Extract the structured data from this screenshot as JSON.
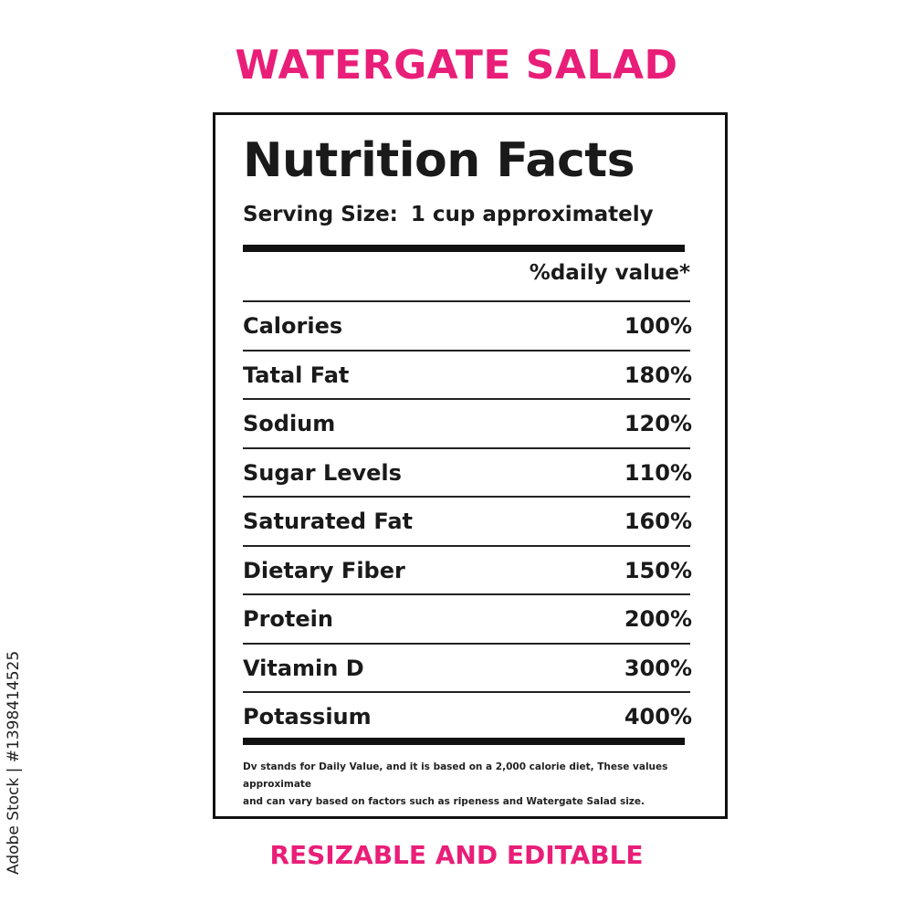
{
  "header": {
    "title": "WATERGATE SALAD",
    "accent_color": "#e91e78"
  },
  "label": {
    "title": "Nutrition Facts",
    "serving_label": "Serving Size:",
    "serving_value": "1 cup approximately",
    "dv_header": "%daily value*",
    "rows": [
      {
        "name": "Calories",
        "percent": "100%"
      },
      {
        "name": "Tatal Fat",
        "percent": "180%"
      },
      {
        "name": "Sodium",
        "percent": "120%"
      },
      {
        "name": "Sugar Levels",
        "percent": "110%"
      },
      {
        "name": "Saturated Fat",
        "percent": "160%"
      },
      {
        "name": "Dietary Fiber",
        "percent": "150%"
      },
      {
        "name": "Protein",
        "percent": "200%"
      },
      {
        "name": "Vitamin D",
        "percent": "300%"
      },
      {
        "name": "Potassium",
        "percent": "400%"
      }
    ],
    "footnote_line1": "Dv stands for Daily Value, and it is based on a 2,000 calorie diet, These values approximate",
    "footnote_line2": "and can vary based on factors such as ripeness and Watergate Salad size."
  },
  "footer": {
    "subtitle": "RESIZABLE AND EDITABLE"
  },
  "stock_id": "Adobe Stock | #1398414525"
}
